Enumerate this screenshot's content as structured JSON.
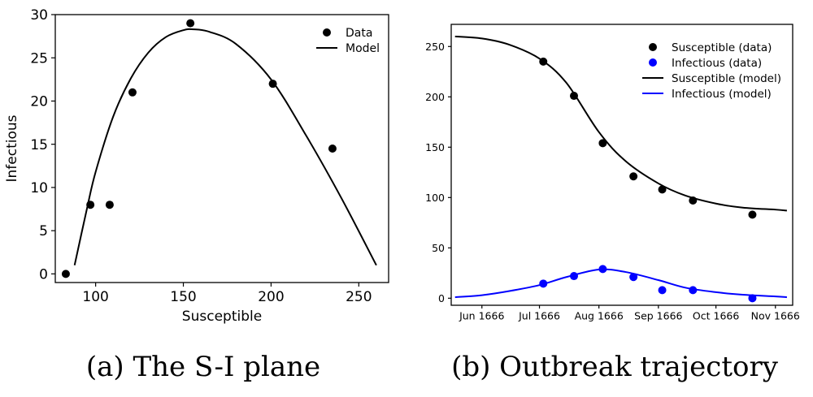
{
  "captions": {
    "a": "(a) The S-I plane",
    "b": "(b) Outbreak trajectory"
  },
  "chart_data": [
    {
      "type": "scatter",
      "panel": "a",
      "xlabel": "Susceptible",
      "ylabel": "Infectious",
      "xlim": [
        77,
        267
      ],
      "ylim": [
        -1,
        30
      ],
      "xticks": [
        100,
        150,
        200,
        250
      ],
      "yticks": [
        0,
        5,
        10,
        15,
        20,
        25,
        30
      ],
      "legend_position": "top-right",
      "series": [
        {
          "name": "Data",
          "kind": "points",
          "color": "#000000",
          "x": [
            83,
            97,
            108,
            121,
            154,
            201,
            235
          ],
          "y": [
            0,
            8,
            8,
            21,
            29,
            22,
            14.5
          ]
        },
        {
          "name": "Model",
          "kind": "line",
          "color": "#000000",
          "x": [
            88,
            95,
            100,
            110,
            120,
            130,
            140,
            150,
            156,
            165,
            180,
            200,
            220,
            240,
            260
          ],
          "y": [
            1,
            7.5,
            11.8,
            18.2,
            22.6,
            25.6,
            27.4,
            28.2,
            28.3,
            28.0,
            26.6,
            22.5,
            16.0,
            8.8,
            1
          ]
        }
      ]
    },
    {
      "type": "line",
      "panel": "b",
      "ylim": [
        -7,
        272
      ],
      "xaxis_type": "date",
      "xlim": [
        "1666-05-16",
        "1666-11-10"
      ],
      "xticks": [
        "1666-06-01",
        "1666-07-01",
        "1666-08-01",
        "1666-09-01",
        "1666-10-01",
        "1666-11-01"
      ],
      "xtick_labels": [
        "Jun 1666",
        "Jul 1666",
        "Aug 1666",
        "Sep 1666",
        "Oct 1666",
        "Nov 1666"
      ],
      "yticks": [
        0,
        50,
        100,
        150,
        200,
        250
      ],
      "legend_position": "top-right",
      "series": [
        {
          "name": "Susceptible (data)",
          "kind": "points",
          "color": "#000000",
          "x": [
            "1666-07-03",
            "1666-07-19",
            "1666-08-03",
            "1666-08-19",
            "1666-09-03",
            "1666-09-19",
            "1666-10-20"
          ],
          "y": [
            235,
            201,
            154,
            121,
            108,
            97,
            83
          ]
        },
        {
          "name": "Infectious (data)",
          "kind": "points",
          "color": "#0000ff",
          "x": [
            "1666-07-03",
            "1666-07-19",
            "1666-08-03",
            "1666-08-19",
            "1666-09-03",
            "1666-09-19",
            "1666-10-20"
          ],
          "y": [
            14.5,
            22,
            29,
            21,
            8,
            8,
            0
          ]
        },
        {
          "name": "Susceptible (model)",
          "kind": "line",
          "color": "#000000",
          "x": [
            "1666-05-18",
            "1666-06-01",
            "1666-06-15",
            "1666-07-01",
            "1666-07-15",
            "1666-08-01",
            "1666-08-15",
            "1666-09-01",
            "1666-09-15",
            "1666-10-01",
            "1666-10-15",
            "1666-11-01",
            "1666-11-07"
          ],
          "y": [
            260,
            258,
            252,
            238,
            214,
            165,
            136,
            114,
            102,
            94,
            90,
            88,
            87
          ]
        },
        {
          "name": "Infectious (model)",
          "kind": "line",
          "color": "#0000ff",
          "x": [
            "1666-05-18",
            "1666-06-01",
            "1666-06-15",
            "1666-07-01",
            "1666-07-15",
            "1666-08-01",
            "1666-08-15",
            "1666-09-01",
            "1666-09-15",
            "1666-10-01",
            "1666-10-15",
            "1666-11-01",
            "1666-11-07"
          ],
          "y": [
            1,
            3,
            7,
            13,
            21,
            28.5,
            26,
            18,
            10.5,
            6,
            3.5,
            1.8,
            1
          ]
        }
      ]
    }
  ]
}
